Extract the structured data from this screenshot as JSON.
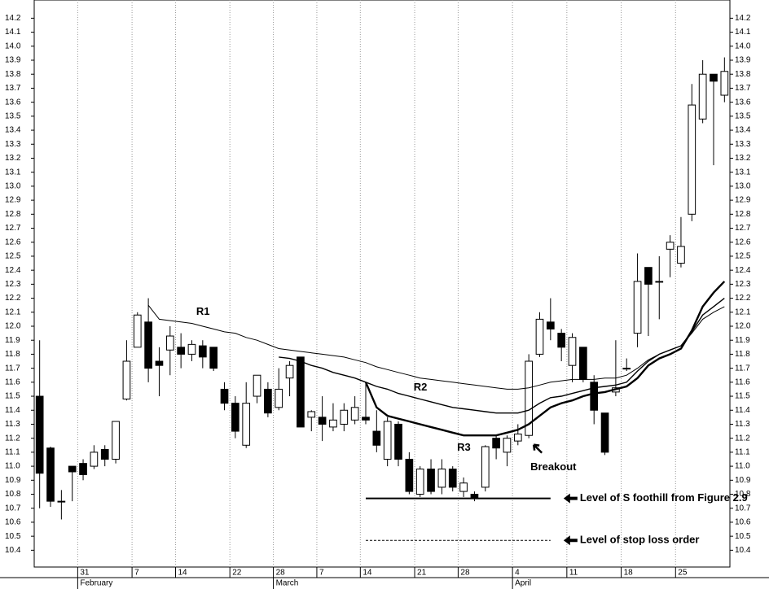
{
  "chart_data": {
    "type": "candlestick",
    "candles": {
      "open": [
        11.5,
        11.13,
        10.75,
        11.0,
        11.02,
        11.0,
        11.12,
        11.05,
        11.48,
        11.85,
        12.03,
        11.75,
        11.83,
        11.85,
        11.8,
        11.86,
        11.85,
        11.55,
        11.45,
        11.15,
        11.5,
        11.55,
        11.42,
        11.63,
        11.78,
        11.35,
        11.35,
        11.28,
        11.3,
        11.33,
        11.35,
        11.25,
        11.05,
        11.3,
        11.05,
        10.8,
        10.98,
        10.85,
        10.98,
        10.82,
        10.8,
        10.85,
        11.2,
        11.1,
        11.18,
        11.22,
        11.8,
        12.03,
        11.95,
        11.72,
        11.85,
        11.6,
        11.38,
        11.53,
        11.7,
        11.95,
        12.42,
        12.32,
        12.55,
        12.45,
        12.8,
        13.48,
        13.8,
        13.65
      ],
      "high": [
        11.9,
        11.14,
        10.83,
        11.0,
        11.05,
        11.15,
        11.15,
        11.32,
        11.9,
        12.1,
        12.2,
        11.85,
        12.0,
        11.95,
        11.9,
        11.9,
        11.85,
        11.6,
        11.5,
        11.6,
        11.65,
        11.6,
        11.7,
        11.75,
        11.78,
        11.4,
        11.5,
        11.45,
        11.45,
        11.5,
        11.6,
        11.4,
        11.35,
        11.32,
        11.1,
        11.0,
        11.05,
        11.05,
        11.0,
        10.92,
        10.82,
        11.15,
        11.22,
        11.22,
        11.3,
        11.8,
        12.1,
        12.2,
        11.98,
        11.95,
        11.85,
        11.65,
        11.38,
        11.9,
        11.77,
        12.52,
        12.42,
        12.5,
        12.65,
        12.78,
        13.73,
        13.9,
        13.8,
        13.92
      ],
      "low": [
        10.7,
        10.71,
        10.62,
        10.75,
        10.9,
        10.98,
        11.0,
        11.02,
        11.47,
        11.85,
        11.6,
        11.5,
        11.65,
        11.7,
        11.75,
        11.7,
        11.68,
        11.4,
        11.2,
        11.13,
        11.45,
        11.35,
        11.4,
        11.5,
        11.28,
        11.25,
        11.18,
        11.25,
        11.25,
        11.3,
        11.3,
        11.1,
        11.0,
        11.0,
        10.8,
        10.78,
        10.8,
        10.8,
        10.82,
        10.78,
        10.75,
        10.82,
        11.05,
        11.0,
        11.15,
        11.2,
        11.78,
        11.9,
        11.75,
        11.6,
        11.6,
        11.3,
        11.08,
        11.5,
        11.68,
        11.85,
        11.93,
        12.05,
        12.35,
        12.42,
        12.75,
        13.45,
        13.15,
        13.6
      ],
      "close": [
        10.95,
        10.75,
        10.75,
        10.96,
        10.94,
        11.1,
        11.05,
        11.32,
        11.75,
        12.08,
        11.7,
        11.72,
        11.93,
        11.8,
        11.87,
        11.78,
        11.7,
        11.45,
        11.25,
        11.45,
        11.65,
        11.38,
        11.55,
        11.72,
        11.28,
        11.39,
        11.3,
        11.33,
        11.4,
        11.42,
        11.33,
        11.15,
        11.32,
        11.05,
        10.82,
        10.98,
        10.82,
        10.98,
        10.85,
        10.88,
        10.77,
        11.14,
        11.13,
        11.2,
        11.23,
        11.75,
        12.05,
        11.98,
        11.85,
        11.92,
        11.62,
        11.4,
        11.1,
        11.56,
        11.7,
        12.32,
        12.3,
        12.32,
        12.6,
        12.57,
        13.58,
        13.8,
        13.75,
        13.82
      ]
    },
    "series": [
      {
        "name": "R1",
        "color": "#000000",
        "width": 1,
        "values": [
          null,
          null,
          null,
          null,
          null,
          null,
          null,
          null,
          null,
          null,
          12.15,
          12.05,
          12.04,
          12.03,
          12.02,
          12.0,
          11.98,
          11.96,
          11.95,
          11.92,
          11.9,
          11.87,
          11.84,
          11.83,
          11.82,
          11.81,
          11.8,
          11.79,
          11.78,
          11.76,
          11.74,
          11.71,
          11.69,
          11.67,
          11.65,
          11.63,
          11.62,
          11.61,
          11.6,
          11.59,
          11.58,
          11.57,
          11.56,
          11.55,
          11.55,
          11.56,
          11.58,
          11.6,
          11.61,
          11.62,
          11.62,
          11.62,
          11.63,
          11.63,
          11.65,
          11.7,
          11.76,
          11.8,
          11.83,
          11.86,
          11.95,
          12.05,
          12.1,
          12.14
        ]
      },
      {
        "name": "R2",
        "color": "#000000",
        "width": 1.4,
        "values": [
          null,
          null,
          null,
          null,
          null,
          null,
          null,
          null,
          null,
          null,
          null,
          null,
          null,
          null,
          null,
          null,
          null,
          null,
          null,
          null,
          null,
          null,
          11.78,
          11.77,
          11.75,
          11.72,
          11.7,
          11.67,
          11.65,
          11.63,
          11.6,
          11.57,
          11.55,
          11.52,
          11.5,
          11.48,
          11.46,
          11.44,
          11.42,
          11.41,
          11.4,
          11.39,
          11.38,
          11.38,
          11.38,
          11.4,
          11.45,
          11.49,
          11.5,
          11.52,
          11.54,
          11.56,
          11.57,
          11.58,
          11.6,
          11.68,
          11.75,
          11.8,
          11.83,
          11.86,
          11.96,
          12.08,
          12.14,
          12.2
        ]
      },
      {
        "name": "R3",
        "color": "#000000",
        "width": 2.4,
        "values": [
          null,
          null,
          null,
          null,
          null,
          null,
          null,
          null,
          null,
          null,
          null,
          null,
          null,
          null,
          null,
          null,
          null,
          null,
          null,
          null,
          null,
          null,
          null,
          null,
          null,
          null,
          null,
          null,
          null,
          null,
          11.6,
          11.42,
          11.36,
          11.34,
          11.32,
          11.3,
          11.28,
          11.26,
          11.24,
          11.22,
          11.22,
          11.22,
          11.22,
          11.24,
          11.26,
          11.3,
          11.36,
          11.42,
          11.45,
          11.47,
          11.5,
          11.52,
          11.53,
          11.55,
          11.57,
          11.63,
          11.72,
          11.77,
          11.8,
          11.84,
          11.97,
          12.14,
          12.24,
          12.32
        ]
      }
    ],
    "annotations": [
      {
        "text": "Breakout"
      }
    ],
    "levels": [
      {
        "label": "Level of S foothill from Figure 2.9",
        "value": 10.77,
        "style": "solid",
        "from": 30,
        "to": 47
      },
      {
        "label": "Level of stop loss order",
        "value": 10.47,
        "style": "dashed",
        "from": 30,
        "to": 47
      }
    ],
    "xticks": [
      {
        "value": 4,
        "label": "31"
      },
      {
        "value": 9,
        "label": "7"
      },
      {
        "value": 13,
        "label": "14"
      },
      {
        "value": 18,
        "label": "22"
      },
      {
        "value": 22,
        "label": "28"
      },
      {
        "value": 26,
        "label": "7"
      },
      {
        "value": 30,
        "label": "14"
      },
      {
        "value": 35,
        "label": "21"
      },
      {
        "value": 39,
        "label": "28"
      },
      {
        "value": 44,
        "label": "4"
      },
      {
        "value": 49,
        "label": "11"
      },
      {
        "value": 54,
        "label": "18"
      },
      {
        "value": 59,
        "label": "25"
      }
    ],
    "months": [
      {
        "value": 4,
        "label": "February"
      },
      {
        "value": 22,
        "label": "March"
      },
      {
        "value": 44,
        "label": "April"
      }
    ],
    "ylim": [
      10.28,
      14.33
    ],
    "yticks": [
      10.4,
      10.5,
      10.6,
      10.7,
      10.8,
      10.9,
      {
        "value": 11,
        "label": "11.0"
      },
      11.1,
      11.2,
      11.3,
      11.4,
      11.5,
      11.6,
      11.7,
      11.8,
      11.9,
      {
        "value": 12,
        "label": "12.0"
      },
      12.1,
      12.2,
      12.3,
      12.4,
      12.5,
      12.6,
      12.7,
      12.8,
      12.9,
      {
        "value": 13,
        "label": "13.0"
      },
      13.1,
      13.2,
      13.3,
      13.4,
      13.5,
      13.6,
      13.7,
      13.8,
      13.9,
      {
        "value": 14,
        "label": "14.0"
      },
      14.1,
      14.2
    ],
    "grid": true
  }
}
